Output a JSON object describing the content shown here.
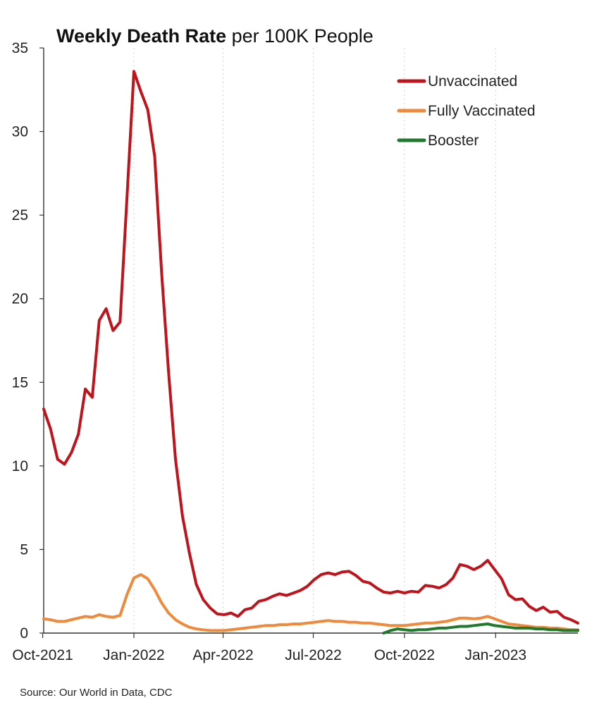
{
  "chart_data": {
    "type": "line",
    "title_bold": "Weekly Death Rate",
    "title_rest": " per 100K People",
    "xlabel": "",
    "ylabel": "",
    "ylim": [
      0,
      35
    ],
    "yticks": [
      0,
      5,
      10,
      15,
      20,
      25,
      30,
      35
    ],
    "xlim": [
      "2021-10-02",
      "2023-03-25"
    ],
    "xticks": [
      {
        "date": "2021-10-01",
        "label": "Oct-2021"
      },
      {
        "date": "2022-01-01",
        "label": "Jan-2022"
      },
      {
        "date": "2022-04-01",
        "label": "Apr-2022"
      },
      {
        "date": "2022-07-01",
        "label": "Jul-2022"
      },
      {
        "date": "2022-10-01",
        "label": "Oct-2022"
      },
      {
        "date": "2023-01-01",
        "label": "Jan-2023"
      }
    ],
    "grid": "vertical-dotted",
    "legend_position": "top-right",
    "series": [
      {
        "name": "Unvaccinated",
        "color": "#c0141c",
        "points": [
          [
            "2021-10-02",
            13.4
          ],
          [
            "2021-10-09",
            12.2
          ],
          [
            "2021-10-16",
            10.4
          ],
          [
            "2021-10-23",
            10.1
          ],
          [
            "2021-10-30",
            10.8
          ],
          [
            "2021-11-06",
            11.9
          ],
          [
            "2021-11-13",
            14.6
          ],
          [
            "2021-11-20",
            14.1
          ],
          [
            "2021-11-27",
            18.7
          ],
          [
            "2021-12-04",
            19.4
          ],
          [
            "2021-12-11",
            18.1
          ],
          [
            "2021-12-18",
            18.6
          ],
          [
            "2021-12-25",
            26.0
          ],
          [
            "2022-01-01",
            33.6
          ],
          [
            "2022-01-08",
            32.4
          ],
          [
            "2022-01-15",
            31.3
          ],
          [
            "2022-01-22",
            28.5
          ],
          [
            "2022-01-29",
            21.5
          ],
          [
            "2022-02-05",
            15.6
          ],
          [
            "2022-02-12",
            10.4
          ],
          [
            "2022-02-19",
            7.0
          ],
          [
            "2022-02-26",
            4.8
          ],
          [
            "2022-03-05",
            2.9
          ],
          [
            "2022-03-12",
            2.0
          ],
          [
            "2022-03-19",
            1.5
          ],
          [
            "2022-03-26",
            1.15
          ],
          [
            "2022-04-02",
            1.1
          ],
          [
            "2022-04-09",
            1.2
          ],
          [
            "2022-04-16",
            1.0
          ],
          [
            "2022-04-23",
            1.4
          ],
          [
            "2022-04-30",
            1.5
          ],
          [
            "2022-05-07",
            1.9
          ],
          [
            "2022-05-14",
            2.0
          ],
          [
            "2022-05-21",
            2.2
          ],
          [
            "2022-05-28",
            2.35
          ],
          [
            "2022-06-04",
            2.25
          ],
          [
            "2022-06-11",
            2.4
          ],
          [
            "2022-06-18",
            2.55
          ],
          [
            "2022-06-25",
            2.8
          ],
          [
            "2022-07-02",
            3.2
          ],
          [
            "2022-07-09",
            3.5
          ],
          [
            "2022-07-16",
            3.6
          ],
          [
            "2022-07-23",
            3.5
          ],
          [
            "2022-07-30",
            3.65
          ],
          [
            "2022-08-06",
            3.7
          ],
          [
            "2022-08-13",
            3.45
          ],
          [
            "2022-08-20",
            3.1
          ],
          [
            "2022-08-27",
            3.0
          ],
          [
            "2022-09-03",
            2.7
          ],
          [
            "2022-09-10",
            2.45
          ],
          [
            "2022-09-17",
            2.4
          ],
          [
            "2022-09-24",
            2.5
          ],
          [
            "2022-10-01",
            2.4
          ],
          [
            "2022-10-08",
            2.5
          ],
          [
            "2022-10-15",
            2.45
          ],
          [
            "2022-10-22",
            2.85
          ],
          [
            "2022-10-29",
            2.8
          ],
          [
            "2022-11-05",
            2.7
          ],
          [
            "2022-11-12",
            2.9
          ],
          [
            "2022-11-19",
            3.3
          ],
          [
            "2022-11-26",
            4.1
          ],
          [
            "2022-12-03",
            4.0
          ],
          [
            "2022-12-10",
            3.8
          ],
          [
            "2022-12-17",
            4.0
          ],
          [
            "2022-12-24",
            4.35
          ],
          [
            "2022-12-31",
            3.8
          ],
          [
            "2023-01-07",
            3.25
          ],
          [
            "2023-01-14",
            2.3
          ],
          [
            "2023-01-21",
            2.0
          ],
          [
            "2023-01-28",
            2.05
          ],
          [
            "2023-02-04",
            1.6
          ],
          [
            "2023-02-11",
            1.35
          ],
          [
            "2023-02-18",
            1.55
          ],
          [
            "2023-02-25",
            1.25
          ],
          [
            "2023-03-04",
            1.3
          ],
          [
            "2023-03-11",
            0.95
          ],
          [
            "2023-03-18",
            0.8
          ],
          [
            "2023-03-25",
            0.6
          ]
        ]
      },
      {
        "name": "Fully Vaccinated",
        "color": "#ef8a3c",
        "points": [
          [
            "2021-10-02",
            0.85
          ],
          [
            "2021-10-09",
            0.8
          ],
          [
            "2021-10-16",
            0.7
          ],
          [
            "2021-10-23",
            0.7
          ],
          [
            "2021-10-30",
            0.8
          ],
          [
            "2021-11-06",
            0.9
          ],
          [
            "2021-11-13",
            1.0
          ],
          [
            "2021-11-20",
            0.95
          ],
          [
            "2021-11-27",
            1.1
          ],
          [
            "2021-12-04",
            1.0
          ],
          [
            "2021-12-11",
            0.95
          ],
          [
            "2021-12-18",
            1.05
          ],
          [
            "2021-12-25",
            2.3
          ],
          [
            "2022-01-01",
            3.3
          ],
          [
            "2022-01-08",
            3.5
          ],
          [
            "2022-01-15",
            3.25
          ],
          [
            "2022-01-22",
            2.6
          ],
          [
            "2022-01-29",
            1.8
          ],
          [
            "2022-02-05",
            1.2
          ],
          [
            "2022-02-12",
            0.8
          ],
          [
            "2022-02-19",
            0.55
          ],
          [
            "2022-02-26",
            0.35
          ],
          [
            "2022-03-05",
            0.25
          ],
          [
            "2022-03-12",
            0.2
          ],
          [
            "2022-03-19",
            0.15
          ],
          [
            "2022-03-26",
            0.15
          ],
          [
            "2022-04-02",
            0.15
          ],
          [
            "2022-04-09",
            0.2
          ],
          [
            "2022-04-16",
            0.25
          ],
          [
            "2022-04-23",
            0.3
          ],
          [
            "2022-04-30",
            0.35
          ],
          [
            "2022-05-07",
            0.4
          ],
          [
            "2022-05-14",
            0.45
          ],
          [
            "2022-05-21",
            0.45
          ],
          [
            "2022-05-28",
            0.5
          ],
          [
            "2022-06-04",
            0.5
          ],
          [
            "2022-06-11",
            0.55
          ],
          [
            "2022-06-18",
            0.55
          ],
          [
            "2022-06-25",
            0.6
          ],
          [
            "2022-07-02",
            0.65
          ],
          [
            "2022-07-09",
            0.7
          ],
          [
            "2022-07-16",
            0.75
          ],
          [
            "2022-07-23",
            0.7
          ],
          [
            "2022-07-30",
            0.7
          ],
          [
            "2022-08-06",
            0.65
          ],
          [
            "2022-08-13",
            0.65
          ],
          [
            "2022-08-20",
            0.6
          ],
          [
            "2022-08-27",
            0.6
          ],
          [
            "2022-09-03",
            0.55
          ],
          [
            "2022-09-10",
            0.5
          ],
          [
            "2022-09-17",
            0.45
          ],
          [
            "2022-09-24",
            0.45
          ],
          [
            "2022-10-01",
            0.45
          ],
          [
            "2022-10-08",
            0.5
          ],
          [
            "2022-10-15",
            0.55
          ],
          [
            "2022-10-22",
            0.6
          ],
          [
            "2022-10-29",
            0.6
          ],
          [
            "2022-11-05",
            0.65
          ],
          [
            "2022-11-12",
            0.7
          ],
          [
            "2022-11-19",
            0.8
          ],
          [
            "2022-11-26",
            0.9
          ],
          [
            "2022-12-03",
            0.9
          ],
          [
            "2022-12-10",
            0.85
          ],
          [
            "2022-12-17",
            0.9
          ],
          [
            "2022-12-24",
            1.0
          ],
          [
            "2022-12-31",
            0.85
          ],
          [
            "2023-01-07",
            0.7
          ],
          [
            "2023-01-14",
            0.55
          ],
          [
            "2023-01-21",
            0.5
          ],
          [
            "2023-01-28",
            0.45
          ],
          [
            "2023-02-04",
            0.4
          ],
          [
            "2023-02-11",
            0.35
          ],
          [
            "2023-02-18",
            0.35
          ],
          [
            "2023-02-25",
            0.3
          ],
          [
            "2023-03-04",
            0.3
          ],
          [
            "2023-03-11",
            0.25
          ],
          [
            "2023-03-18",
            0.2
          ],
          [
            "2023-03-25",
            0.2
          ]
        ]
      },
      {
        "name": "Booster",
        "color": "#1f7a2c",
        "points": [
          [
            "2022-09-10",
            0.0
          ],
          [
            "2022-09-17",
            0.15
          ],
          [
            "2022-09-24",
            0.25
          ],
          [
            "2022-10-01",
            0.2
          ],
          [
            "2022-10-08",
            0.15
          ],
          [
            "2022-10-15",
            0.2
          ],
          [
            "2022-10-22",
            0.2
          ],
          [
            "2022-10-29",
            0.25
          ],
          [
            "2022-11-05",
            0.3
          ],
          [
            "2022-11-12",
            0.3
          ],
          [
            "2022-11-19",
            0.35
          ],
          [
            "2022-11-26",
            0.4
          ],
          [
            "2022-12-03",
            0.4
          ],
          [
            "2022-12-10",
            0.45
          ],
          [
            "2022-12-17",
            0.5
          ],
          [
            "2022-12-24",
            0.55
          ],
          [
            "2022-12-31",
            0.45
          ],
          [
            "2023-01-07",
            0.4
          ],
          [
            "2023-01-14",
            0.35
          ],
          [
            "2023-01-21",
            0.3
          ],
          [
            "2023-01-28",
            0.3
          ],
          [
            "2023-02-04",
            0.3
          ],
          [
            "2023-02-11",
            0.25
          ],
          [
            "2023-02-18",
            0.25
          ],
          [
            "2023-02-25",
            0.2
          ],
          [
            "2023-03-04",
            0.2
          ],
          [
            "2023-03-11",
            0.15
          ],
          [
            "2023-03-18",
            0.15
          ],
          [
            "2023-03-25",
            0.15
          ]
        ]
      }
    ]
  },
  "source": "Source: Our World in Data, CDC"
}
